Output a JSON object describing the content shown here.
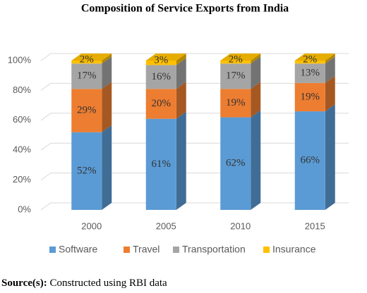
{
  "chart_data": {
    "type": "bar3d_stacked",
    "title": "Composition of Service Exports from India",
    "categories": [
      "2000",
      "2005",
      "2010",
      "2015"
    ],
    "series": [
      {
        "name": "Software",
        "color": "#5b9bd5",
        "values": [
          52,
          61,
          62,
          66
        ],
        "value_labels": [
          "52%",
          "61%",
          "62%",
          "66%"
        ]
      },
      {
        "name": "Travel",
        "color": "#ed7d31",
        "values": [
          29,
          20,
          19,
          19
        ],
        "value_labels": [
          "29%",
          "20%",
          "19%",
          "19%"
        ]
      },
      {
        "name": "Transportation",
        "color": "#a5a5a5",
        "values": [
          17,
          16,
          17,
          13
        ],
        "value_labels": [
          "17%",
          "16%",
          "17%",
          "13%"
        ]
      },
      {
        "name": "Insurance",
        "color": "#ffc000",
        "values": [
          2,
          3,
          2,
          2
        ],
        "value_labels": [
          "2%",
          "3%",
          "2%",
          "2%"
        ]
      }
    ],
    "ylim": [
      0,
      100
    ],
    "yticks": [
      {
        "value": 0,
        "label": "0%"
      },
      {
        "value": 20,
        "label": "20%"
      },
      {
        "value": 40,
        "label": "40%"
      },
      {
        "value": 60,
        "label": "60%"
      },
      {
        "value": 80,
        "label": "80%"
      },
      {
        "value": 100,
        "label": "100%"
      }
    ],
    "grid": true,
    "legend": "bottom",
    "source": {
      "label": "Source(s):",
      "text": "Constructed using RBI data"
    }
  }
}
